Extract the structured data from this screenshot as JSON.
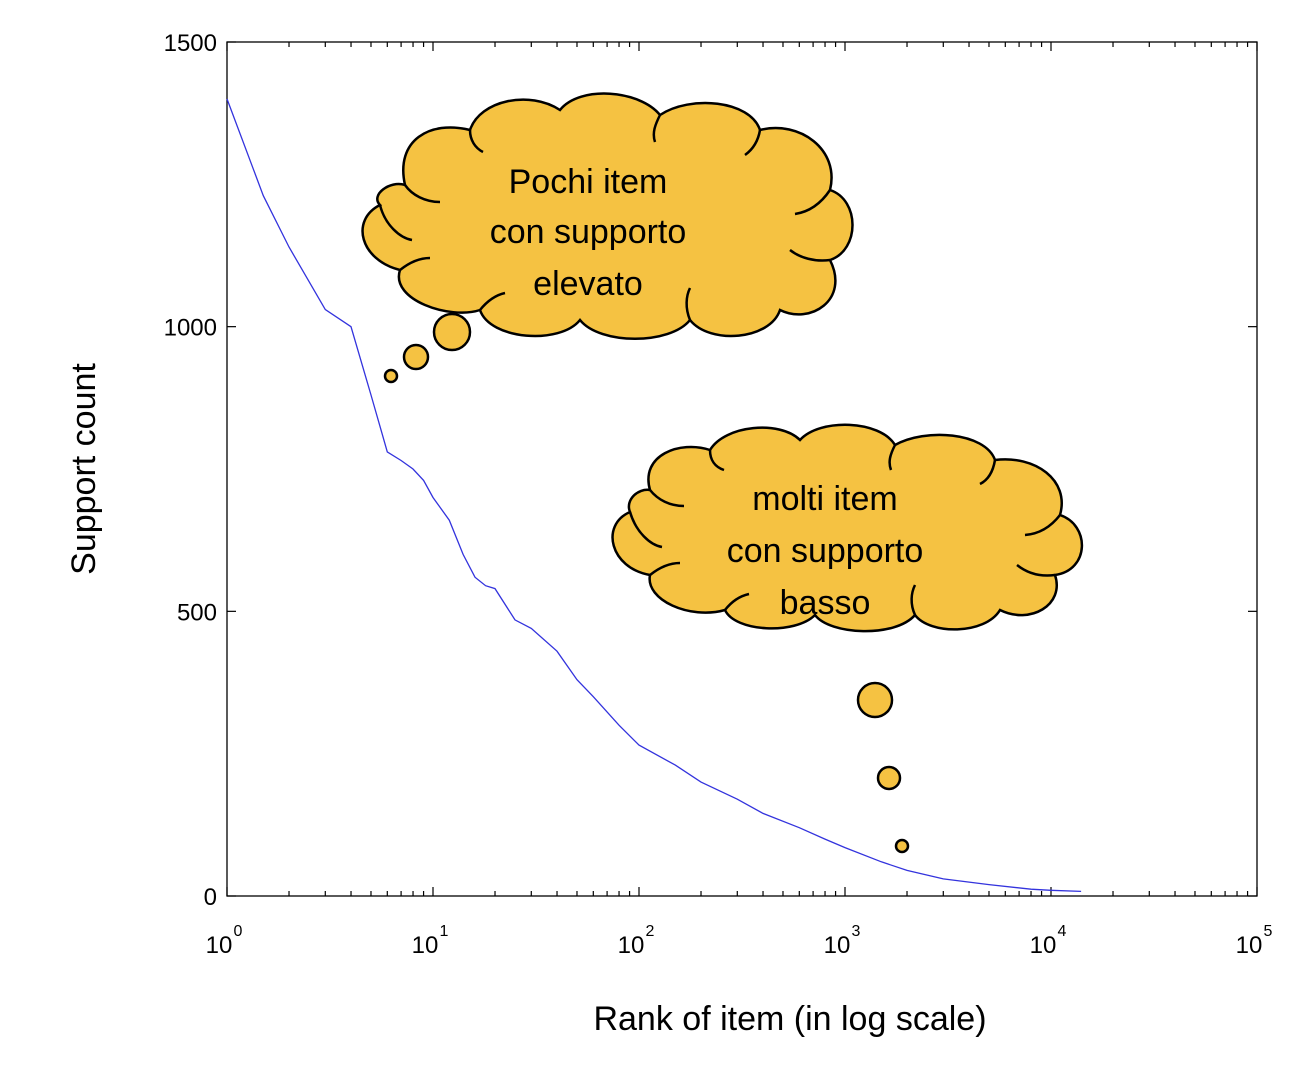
{
  "chart_data": {
    "type": "line",
    "title": "",
    "xlabel": "Rank of item (in log scale)",
    "ylabel": "Support count",
    "xscale": "log",
    "xlim": [
      1,
      100000
    ],
    "ylim": [
      0,
      1500
    ],
    "grid": false,
    "yticks": [
      "0",
      "500",
      "1000",
      "1500"
    ],
    "xticks": [
      {
        "base": "10",
        "exp": "0"
      },
      {
        "base": "10",
        "exp": "1"
      },
      {
        "base": "10",
        "exp": "2"
      },
      {
        "base": "10",
        "exp": "3"
      },
      {
        "base": "10",
        "exp": "4"
      },
      {
        "base": "10",
        "exp": "5"
      }
    ],
    "line_color": "#3333dd",
    "series": [
      {
        "x": [
          1,
          1.5,
          2,
          3,
          4,
          5,
          6,
          7,
          8,
          9,
          10,
          12,
          14,
          16,
          18,
          20,
          25,
          30,
          40,
          50,
          60,
          80,
          100,
          150,
          200,
          300,
          400,
          600,
          800,
          1000,
          1500,
          2000,
          3000,
          5000,
          8000,
          10000,
          14000
        ],
        "y": [
          1400,
          1230,
          1140,
          1030,
          1000,
          880,
          780,
          765,
          750,
          730,
          700,
          660,
          600,
          560,
          545,
          540,
          485,
          470,
          430,
          380,
          350,
          300,
          265,
          230,
          200,
          170,
          145,
          120,
          100,
          85,
          60,
          45,
          30,
          20,
          12,
          10,
          8
        ]
      }
    ],
    "annotations": [
      {
        "lines": [
          "Pochi item",
          "con supporto",
          "elevato"
        ],
        "fill": "#f5c242"
      },
      {
        "lines": [
          "molti item",
          "con supporto",
          "basso"
        ],
        "fill": "#f5c242"
      }
    ]
  }
}
